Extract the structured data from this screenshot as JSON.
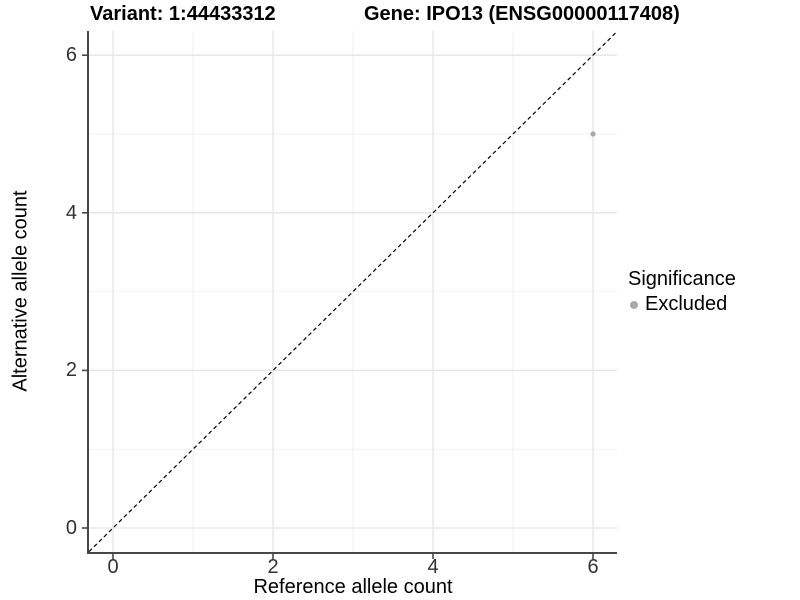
{
  "chart_data": {
    "type": "scatter",
    "title_left": "Variant: 1:44433312",
    "title_right": "Gene: IPO13 (ENSG00000117408)",
    "xlabel": "Reference allele count",
    "ylabel": "Alternative allele count",
    "xlim": [
      -0.3,
      6.3
    ],
    "ylim": [
      -0.3,
      6.3
    ],
    "xtick_values": [
      0,
      2,
      4,
      6
    ],
    "ytick_values": [
      0,
      2,
      4,
      6
    ],
    "minor_tick_values": [
      1,
      3,
      5
    ],
    "grid": "major+minor",
    "identity_line": {
      "style": "dashed",
      "color": "#000000",
      "from": [
        -0.3,
        -0.3
      ],
      "to": [
        6.3,
        6.3
      ]
    },
    "points": [
      {
        "x": 6,
        "y": 5,
        "significance": "Excluded"
      }
    ],
    "legend": {
      "title": "Significance",
      "position": "right",
      "items": [
        {
          "label": "Excluded",
          "color": "#a9a9a9"
        }
      ]
    },
    "colors": {
      "point": "#a9a9a9",
      "grid_major": "#e5e5e5",
      "grid_minor": "#f2f2f2",
      "axis": "#474747",
      "background": "#ffffff"
    }
  }
}
